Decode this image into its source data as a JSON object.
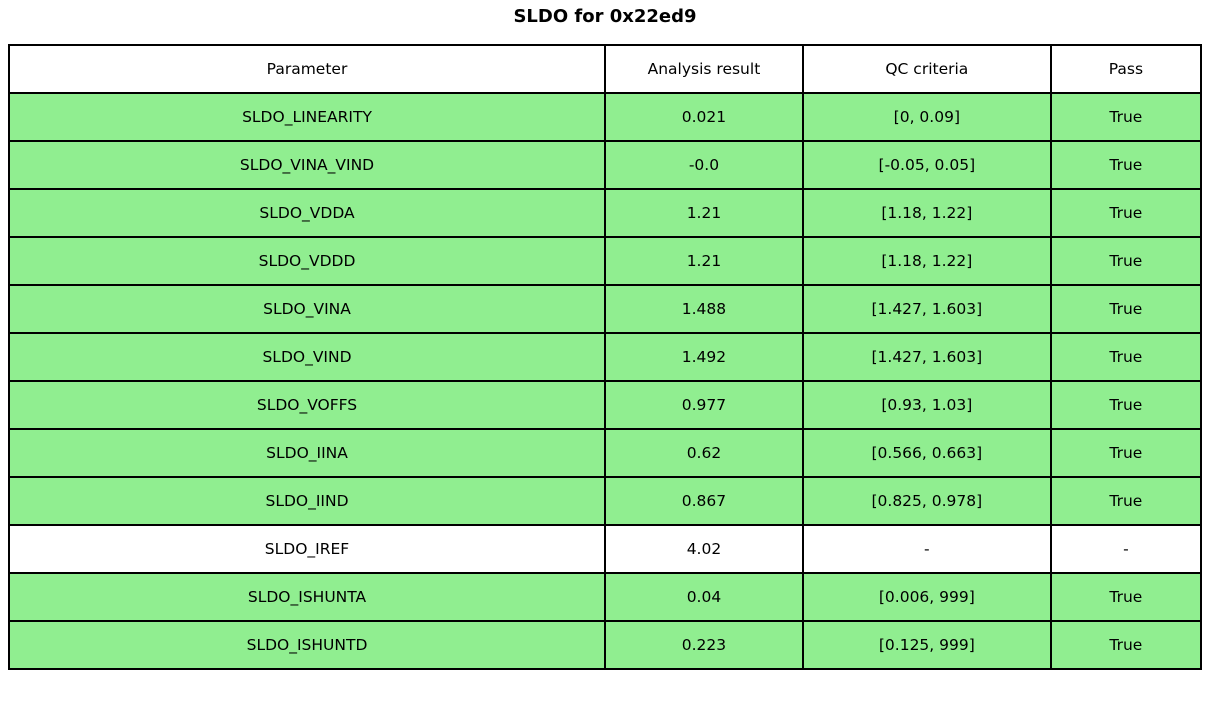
{
  "title": "SLDO for 0x22ed9",
  "colors": {
    "pass_row_bg": "#90ee90",
    "neutral_row_bg": "#ffffff",
    "border": "#000000",
    "background": "#ffffff"
  },
  "table": {
    "headers": [
      "Parameter",
      "Analysis result",
      "QC criteria",
      "Pass"
    ],
    "rows": [
      {
        "parameter": "SLDO_LINEARITY",
        "result": "0.021",
        "criteria": "[0, 0.09]",
        "pass": "True",
        "highlighted": true
      },
      {
        "parameter": "SLDO_VINA_VIND",
        "result": "-0.0",
        "criteria": "[-0.05, 0.05]",
        "pass": "True",
        "highlighted": true
      },
      {
        "parameter": "SLDO_VDDA",
        "result": "1.21",
        "criteria": "[1.18, 1.22]",
        "pass": "True",
        "highlighted": true
      },
      {
        "parameter": "SLDO_VDDD",
        "result": "1.21",
        "criteria": "[1.18, 1.22]",
        "pass": "True",
        "highlighted": true
      },
      {
        "parameter": "SLDO_VINA",
        "result": "1.488",
        "criteria": "[1.427, 1.603]",
        "pass": "True",
        "highlighted": true
      },
      {
        "parameter": "SLDO_VIND",
        "result": "1.492",
        "criteria": "[1.427, 1.603]",
        "pass": "True",
        "highlighted": true
      },
      {
        "parameter": "SLDO_VOFFS",
        "result": "0.977",
        "criteria": "[0.93, 1.03]",
        "pass": "True",
        "highlighted": true
      },
      {
        "parameter": "SLDO_IINA",
        "result": "0.62",
        "criteria": "[0.566, 0.663]",
        "pass": "True",
        "highlighted": true
      },
      {
        "parameter": "SLDO_IIND",
        "result": "0.867",
        "criteria": "[0.825, 0.978]",
        "pass": "True",
        "highlighted": true
      },
      {
        "parameter": "SLDO_IREF",
        "result": "4.02",
        "criteria": "-",
        "pass": "-",
        "highlighted": false
      },
      {
        "parameter": "SLDO_ISHUNTA",
        "result": "0.04",
        "criteria": "[0.006, 999]",
        "pass": "True",
        "highlighted": true
      },
      {
        "parameter": "SLDO_ISHUNTD",
        "result": "0.223",
        "criteria": "[0.125, 999]",
        "pass": "True",
        "highlighted": true
      }
    ]
  },
  "chart_data": {
    "type": "table",
    "title": "SLDO for 0x22ed9",
    "columns": [
      "Parameter",
      "Analysis result",
      "QC criteria",
      "Pass"
    ],
    "rows": [
      [
        "SLDO_LINEARITY",
        0.021,
        "[0, 0.09]",
        "True"
      ],
      [
        "SLDO_VINA_VIND",
        -0.0,
        "[-0.05, 0.05]",
        "True"
      ],
      [
        "SLDO_VDDA",
        1.21,
        "[1.18, 1.22]",
        "True"
      ],
      [
        "SLDO_VDDD",
        1.21,
        "[1.18, 1.22]",
        "True"
      ],
      [
        "SLDO_VINA",
        1.488,
        "[1.427, 1.603]",
        "True"
      ],
      [
        "SLDO_VIND",
        1.492,
        "[1.427, 1.603]",
        "True"
      ],
      [
        "SLDO_VOFFS",
        0.977,
        "[0.93, 1.03]",
        "True"
      ],
      [
        "SLDO_IINA",
        0.62,
        "[0.566, 0.663]",
        "True"
      ],
      [
        "SLDO_IIND",
        0.867,
        "[0.825, 0.978]",
        "True"
      ],
      [
        "SLDO_IREF",
        4.02,
        "-",
        "-"
      ],
      [
        "SLDO_ISHUNTA",
        0.04,
        "[0.006, 999]",
        "True"
      ],
      [
        "SLDO_ISHUNTD",
        0.223,
        "[0.125, 999]",
        "True"
      ]
    ],
    "layout_hints": {
      "highlight_color": "#90ee90",
      "non_highlighted_rows": [
        "SLDO_IREF"
      ],
      "cell_text_align": "center",
      "border_color": "#000000"
    }
  }
}
